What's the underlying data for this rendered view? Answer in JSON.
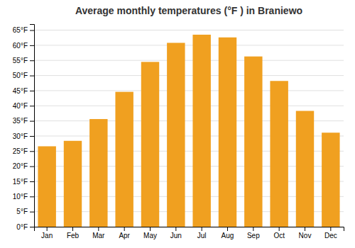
{
  "chart_data": {
    "type": "bar",
    "title": "Average monthly temperatures (°F ) in Braniewo",
    "categories": [
      "Jan",
      "Feb",
      "Mar",
      "Apr",
      "May",
      "Jun",
      "Jul",
      "Aug",
      "Sep",
      "Oct",
      "Nov",
      "Dec"
    ],
    "values": [
      26.6,
      28.4,
      35.6,
      44.6,
      54.5,
      60.8,
      63.5,
      62.6,
      56.3,
      48.2,
      38.3,
      31.1
    ],
    "color": "#F0A020",
    "ylim": [
      0,
      67
    ],
    "yticks": [
      {
        "value": 0,
        "label": "0°F"
      },
      {
        "value": 5,
        "label": "5°F"
      },
      {
        "value": 10,
        "label": "10°F"
      },
      {
        "value": 15,
        "label": "15°F"
      },
      {
        "value": 20,
        "label": "20°F"
      },
      {
        "value": 25,
        "label": "25°F"
      },
      {
        "value": 30,
        "label": "30°F"
      },
      {
        "value": 35,
        "label": "35°F"
      },
      {
        "value": 40,
        "label": "40°F"
      },
      {
        "value": 45,
        "label": "45°F"
      },
      {
        "value": 50,
        "label": "50°F"
      },
      {
        "value": 55,
        "label": "55°F"
      },
      {
        "value": 60,
        "label": "60°F"
      },
      {
        "value": 65,
        "label": "65°F"
      }
    ],
    "grid": true
  }
}
